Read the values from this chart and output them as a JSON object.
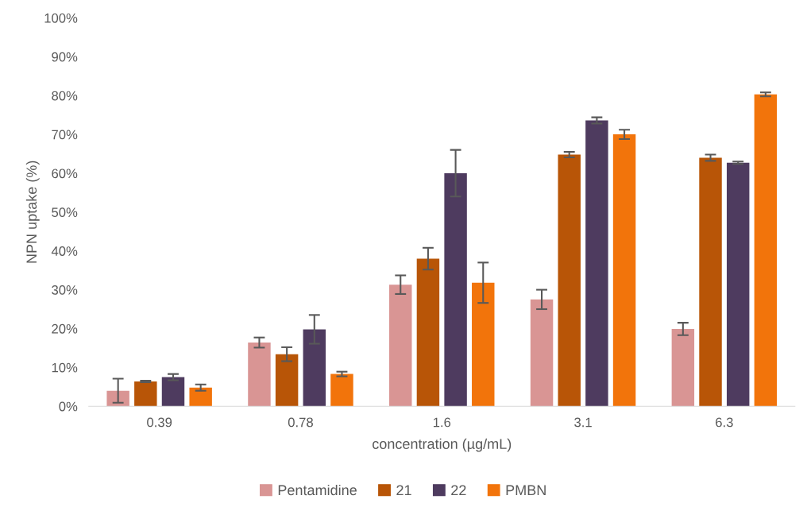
{
  "chart_data": {
    "type": "bar",
    "xlabel": "concentration (µg/mL)",
    "ylabel": "NPN uptake (%)",
    "categories": [
      "0.39",
      "0.78",
      "1.6",
      "3.1",
      "6.3"
    ],
    "series": [
      {
        "name": "Pentamidine",
        "color": "#d99594",
        "values": [
          4.0,
          16.4,
          31.3,
          27.5,
          19.9
        ],
        "errors": [
          3.1,
          1.3,
          2.4,
          2.5,
          1.6
        ]
      },
      {
        "name": "21",
        "color": "#b85507",
        "values": [
          6.4,
          13.4,
          38.0,
          64.8,
          64.0
        ],
        "errors": [
          0.2,
          1.8,
          2.8,
          0.7,
          0.8
        ]
      },
      {
        "name": "22",
        "color": "#4e3b5f",
        "values": [
          7.5,
          19.8,
          60.0,
          73.6,
          62.7
        ],
        "errors": [
          0.8,
          3.7,
          6.0,
          0.8,
          0.3
        ]
      },
      {
        "name": "PMBN",
        "color": "#f2740b",
        "values": [
          4.8,
          8.3,
          31.8,
          70.0,
          80.3
        ],
        "errors": [
          0.8,
          0.6,
          5.2,
          1.2,
          0.5
        ]
      }
    ],
    "ylim": [
      0,
      100
    ],
    "yticks": [
      {
        "value": 0,
        "label": "0%"
      },
      {
        "value": 10,
        "label": "10%"
      },
      {
        "value": 20,
        "label": "20%"
      },
      {
        "value": 30,
        "label": "30%"
      },
      {
        "value": 40,
        "label": "40%"
      },
      {
        "value": 50,
        "label": "50%"
      },
      {
        "value": 60,
        "label": "60%"
      },
      {
        "value": 70,
        "label": "70%"
      },
      {
        "value": 80,
        "label": "80%"
      },
      {
        "value": 90,
        "label": "90%"
      },
      {
        "value": 100,
        "label": "100%"
      }
    ],
    "grid": false,
    "legend": "bottom"
  }
}
